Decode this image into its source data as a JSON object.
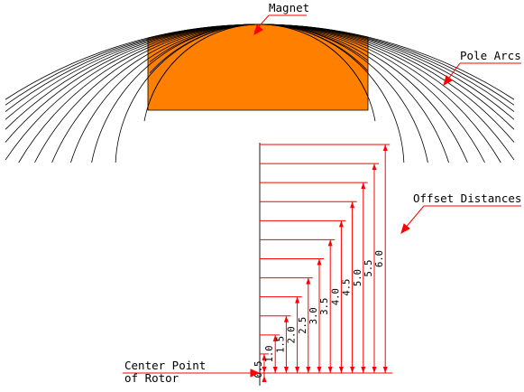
{
  "labels": {
    "magnet": "Magnet",
    "pole_arcs": "Pole Arcs",
    "offset_distances": "Offset Distances",
    "center_point_line1": "Center Point",
    "center_point_line2": "of Rotor"
  },
  "offsets": [
    "0.5",
    "1.0",
    "1.5",
    "2.0",
    "2.5",
    "3.0",
    "3.5",
    "4.0",
    "4.5",
    "5.0",
    "5.5",
    "6.0"
  ],
  "colors": {
    "magnet_fill": "#ff8000",
    "dimension": "#ff0000",
    "arc_stroke": "#000000",
    "text": "#000000"
  }
}
